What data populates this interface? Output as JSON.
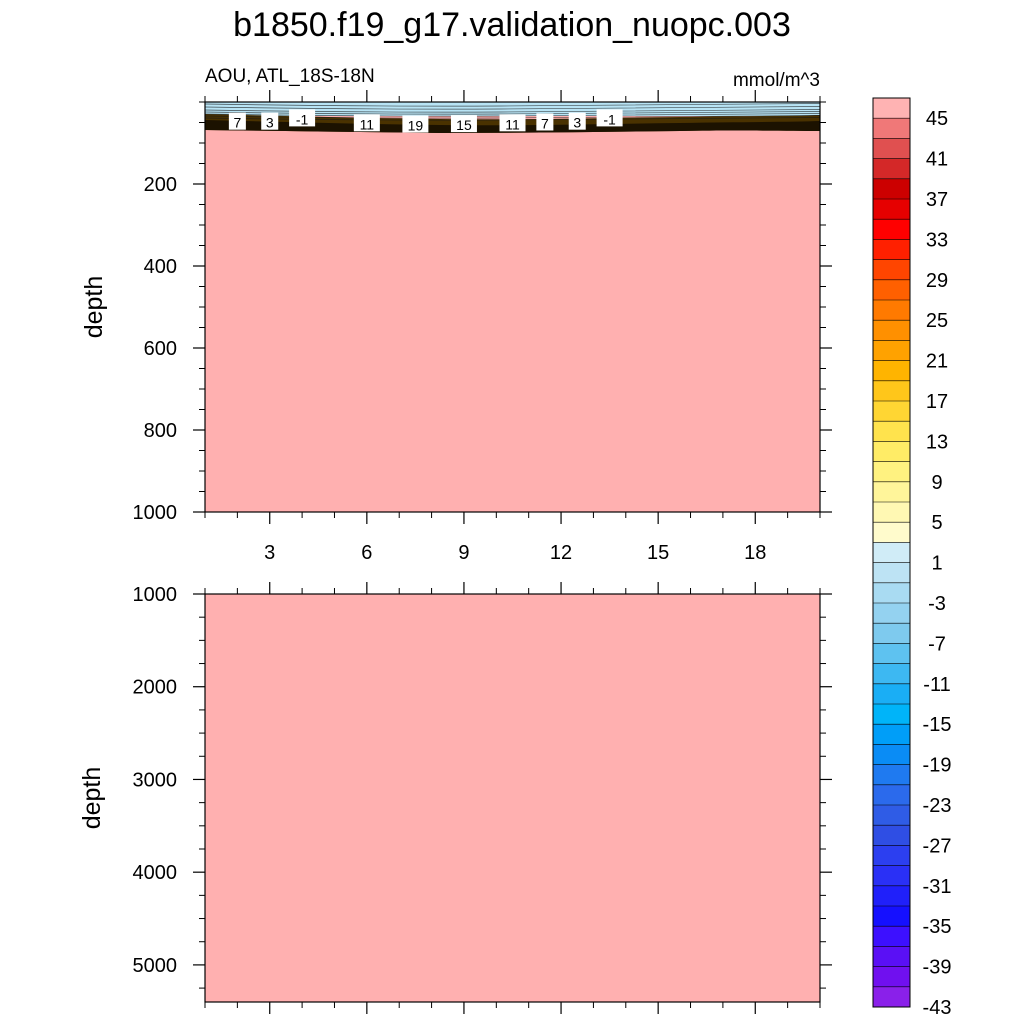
{
  "title": "b1850.f19_g17.validation_nuopc.003",
  "variable_label": "AOU, ATL_18S-18N",
  "units": "mmol/m^3",
  "colors": {
    "fill_main": "#ffb0b0",
    "surface_blue": "#b8e4f5",
    "contour_line": "#1a1a1a"
  },
  "chart_data": [
    {
      "type": "heatmap",
      "panel": "upper",
      "ylabel": "depth",
      "xlabel": "",
      "xlim": [
        1,
        20
      ],
      "ylim": [
        1000,
        0
      ],
      "x_ticks": [
        3,
        6,
        9,
        12,
        15,
        18
      ],
      "y_ticks": [
        200,
        400,
        600,
        800,
        1000
      ],
      "grid": false,
      "field_description_values": {
        "surface_layer_value": -3,
        "interior_value": 45
      },
      "contour_labels": [
        {
          "value": "7",
          "x": 2.0,
          "depth": 48
        },
        {
          "value": "3",
          "x": 3.0,
          "depth": 48
        },
        {
          "value": "-1",
          "x": 4.0,
          "depth": 40
        },
        {
          "value": "11",
          "x": 6.0,
          "depth": 52
        },
        {
          "value": "19",
          "x": 7.5,
          "depth": 55
        },
        {
          "value": "15",
          "x": 9.0,
          "depth": 54
        },
        {
          "value": "11",
          "x": 10.5,
          "depth": 52
        },
        {
          "value": "7",
          "x": 11.5,
          "depth": 50
        },
        {
          "value": "3",
          "x": 12.5,
          "depth": 48
        },
        {
          "value": "-1",
          "x": 13.5,
          "depth": 40
        }
      ]
    },
    {
      "type": "heatmap",
      "panel": "lower",
      "ylabel": "depth",
      "xlabel": "",
      "xlim": [
        1,
        20
      ],
      "ylim": [
        5400,
        1000
      ],
      "x_ticks": [
        3,
        6,
        9,
        12,
        15,
        18
      ],
      "y_ticks": [
        1000,
        2000,
        3000,
        4000,
        5000
      ],
      "grid": false,
      "field_description_values": {
        "interior_value": 45
      },
      "contour_labels": []
    }
  ],
  "colorbar": {
    "label_values": [
      "45",
      "41",
      "37",
      "33",
      "29",
      "25",
      "21",
      "17",
      "13",
      "9",
      "5",
      "1",
      "-3",
      "-7",
      "-11",
      "-15",
      "-19",
      "-23",
      "-27",
      "-31",
      "-35",
      "-39",
      "-43"
    ],
    "colors": [
      "#ffb3b3",
      "#f07878",
      "#e05050",
      "#d42828",
      "#cc0000",
      "#e60000",
      "#ff0000",
      "#ff2000",
      "#ff4500",
      "#ff6000",
      "#ff7a00",
      "#ff9000",
      "#ffa200",
      "#ffb400",
      "#ffc61a",
      "#ffd633",
      "#ffe34d",
      "#ffec66",
      "#fff280",
      "#fff59a",
      "#fff8b3",
      "#fffbcc",
      "#d0ecf7",
      "#bde3f4",
      "#a9dbf2",
      "#94d2f0",
      "#7ecaee",
      "#5ec2f0",
      "#3db8f2",
      "#1aaef5",
      "#00b4f9",
      "#009ef8",
      "#0a8cf5",
      "#1f7af0",
      "#2b6aec",
      "#2f5ce6",
      "#2f4ee4",
      "#2c3ff0",
      "#2a30f6",
      "#2020fa",
      "#1510ff",
      "#3d10ff",
      "#5a10f5",
      "#7010ef",
      "#8a20ea"
    ]
  }
}
